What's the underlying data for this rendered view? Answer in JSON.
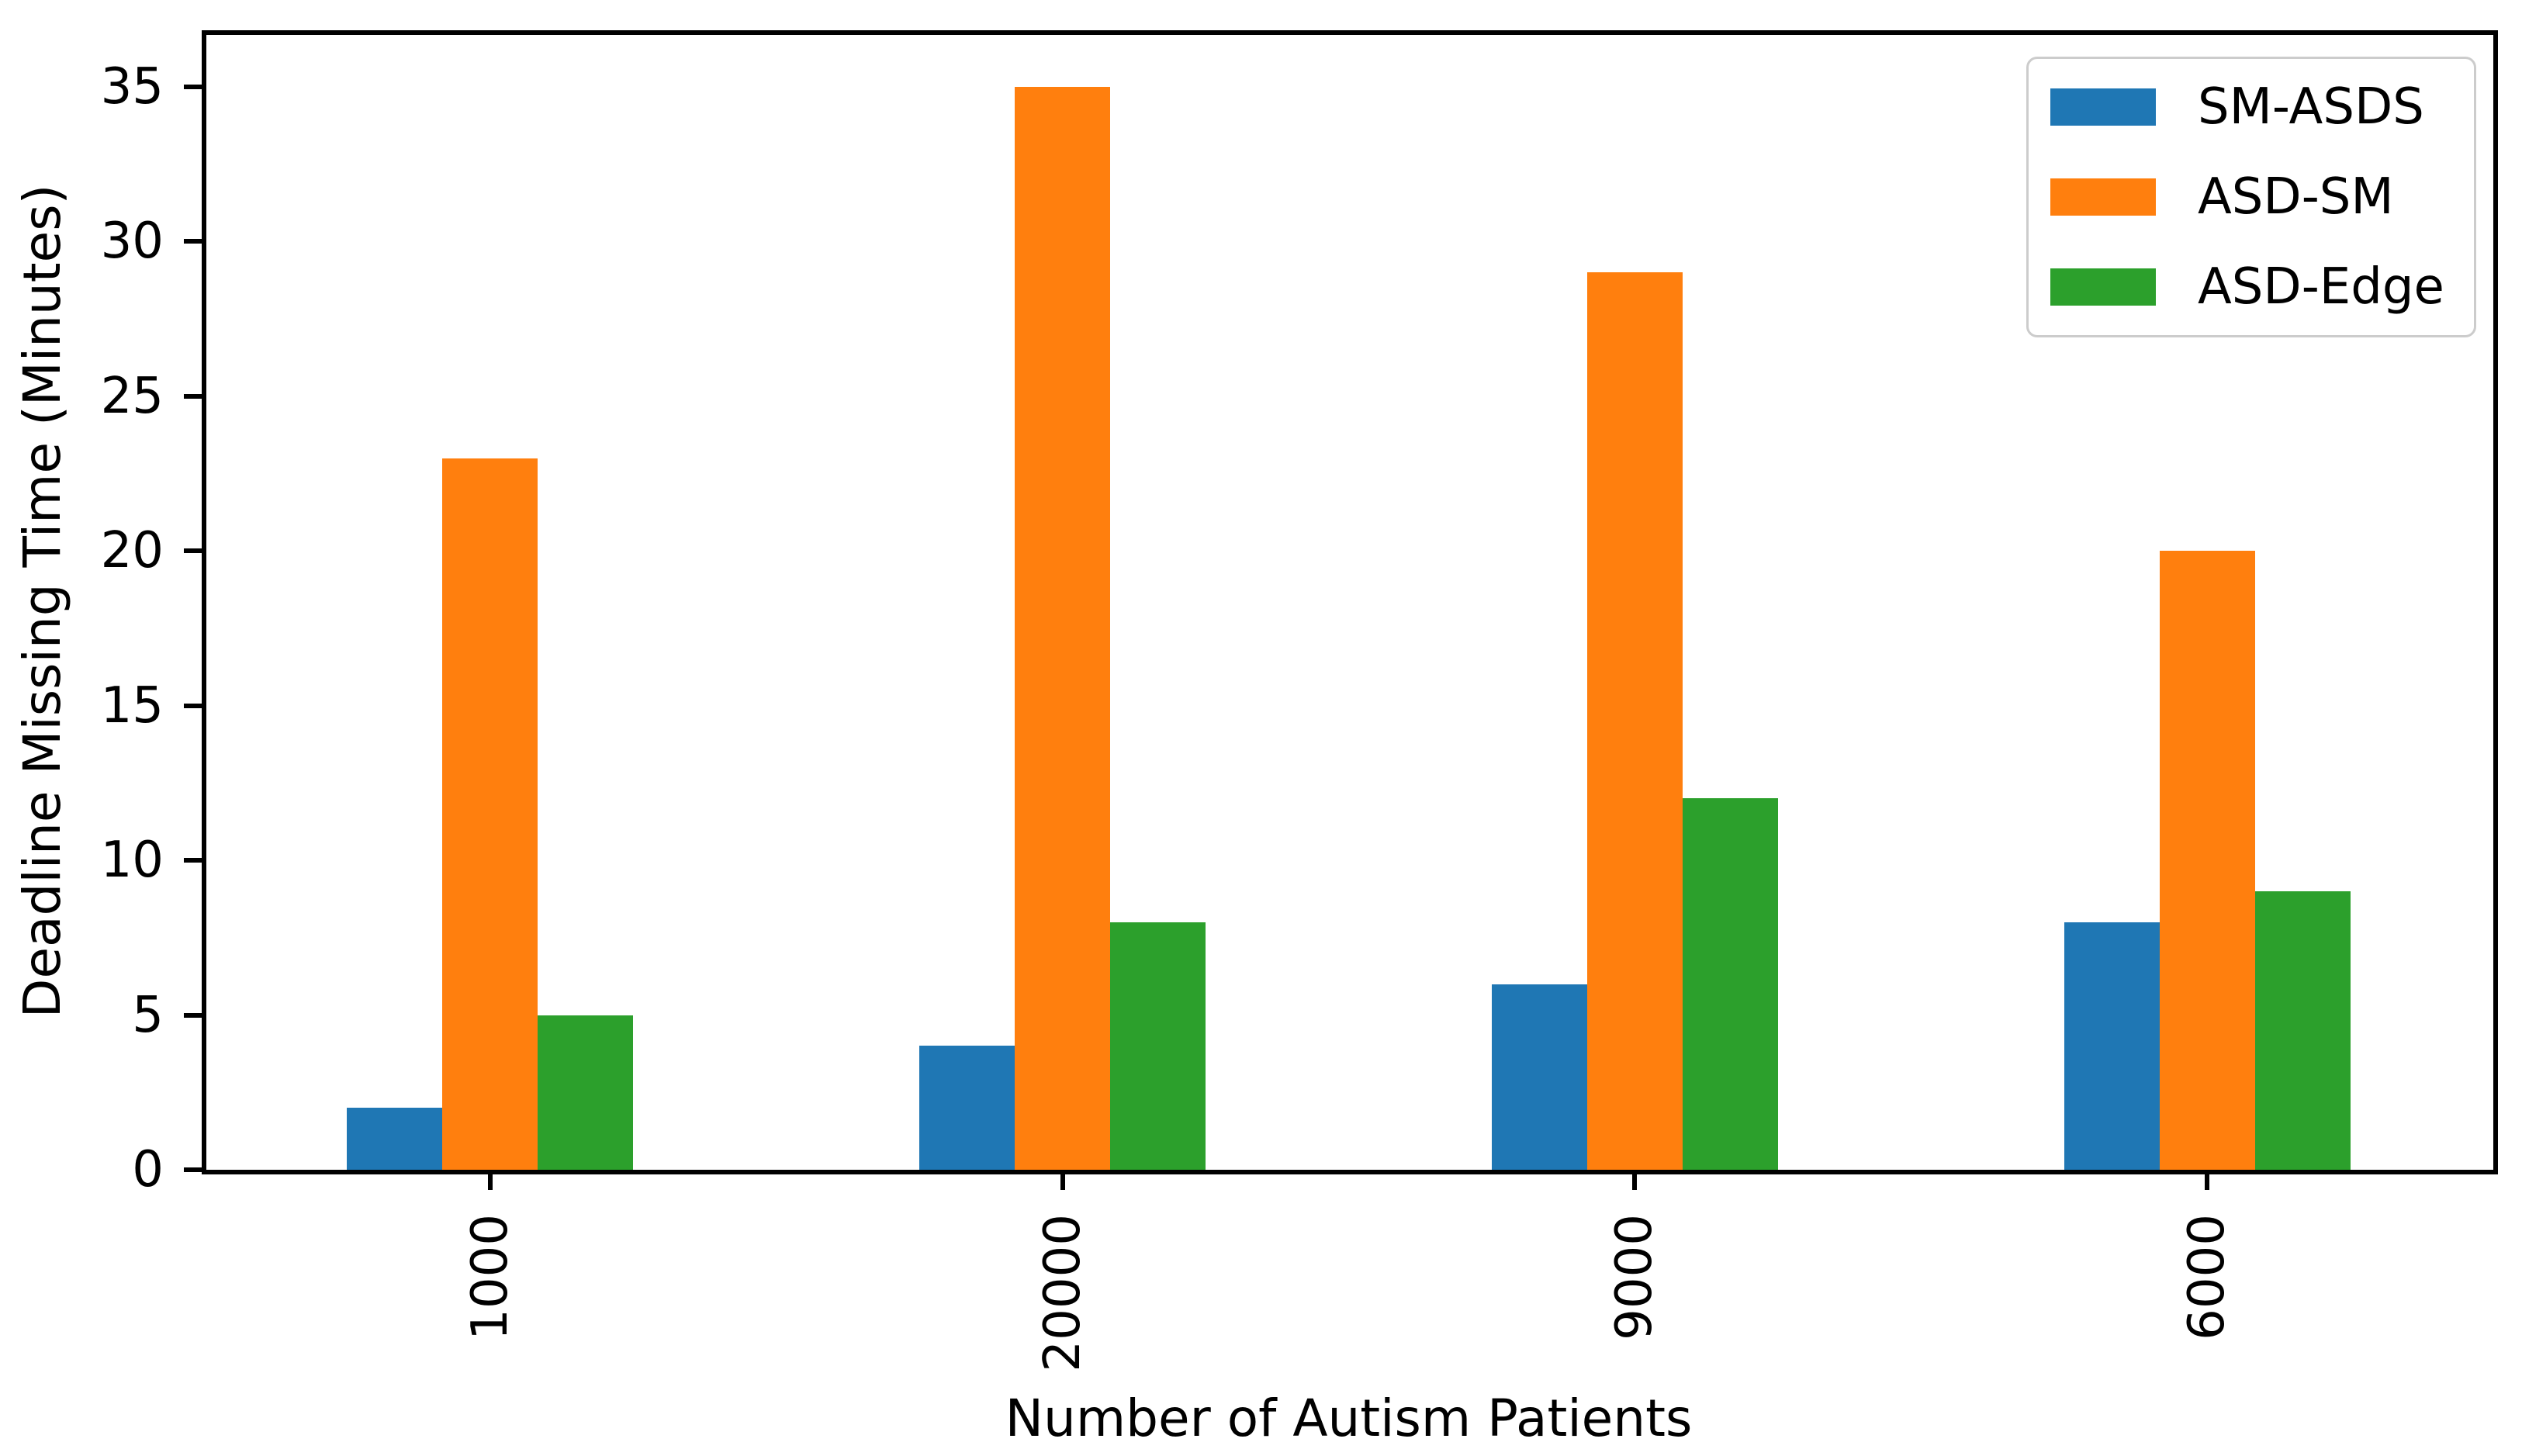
{
  "chart_data": {
    "type": "bar",
    "title": "",
    "xlabel": "Number of Autism Patients",
    "ylabel": "Deadline Missing Time (Minutes)",
    "categories": [
      "1000",
      "20000",
      "9000",
      "6000"
    ],
    "series": [
      {
        "name": "SM-ASDS",
        "color": "#1f77b4",
        "values": [
          2,
          4,
          6,
          8
        ]
      },
      {
        "name": "ASD-SM",
        "color": "#ff7f0e",
        "values": [
          23,
          35,
          29,
          20
        ]
      },
      {
        "name": "ASD-Edge",
        "color": "#2ca02c",
        "values": [
          5,
          8,
          12,
          9
        ]
      }
    ],
    "yticks": [
      0,
      5,
      10,
      15,
      20,
      25,
      30,
      35
    ],
    "ylim": [
      0,
      36.75
    ],
    "grid": false,
    "legend_position": "upper right",
    "axis_color": "#000000",
    "background": "#ffffff"
  }
}
